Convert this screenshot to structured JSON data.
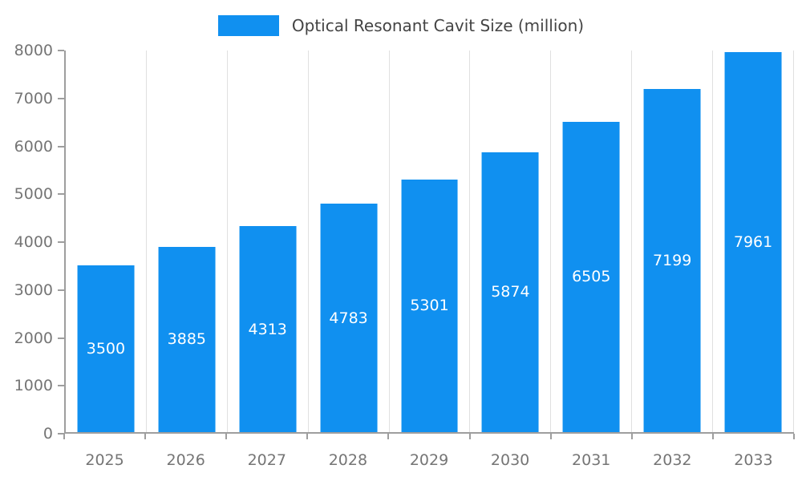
{
  "chart_data": {
    "type": "bar",
    "title": "Optical Resonant Cavit Size (million)",
    "categories": [
      "2025",
      "2026",
      "2027",
      "2028",
      "2029",
      "2030",
      "2031",
      "2032",
      "2033"
    ],
    "values": [
      3500,
      3885,
      4313,
      4783,
      5301,
      5874,
      6505,
      7199,
      7961
    ],
    "xlabel": "",
    "ylabel": "",
    "ylim": [
      0,
      8000
    ],
    "ytick_step": 1000,
    "legend_position": "top-center",
    "grid": "vertical-only",
    "value_labels": "inside-center-white",
    "colors": {
      "bar": "#1090f0",
      "value_label": "#ffffff",
      "axis_line": "#9e9e9e",
      "grid_line": "#e0e0e0",
      "tick_label": "#757575",
      "title_text": "#444444",
      "background": "#ffffff"
    }
  }
}
